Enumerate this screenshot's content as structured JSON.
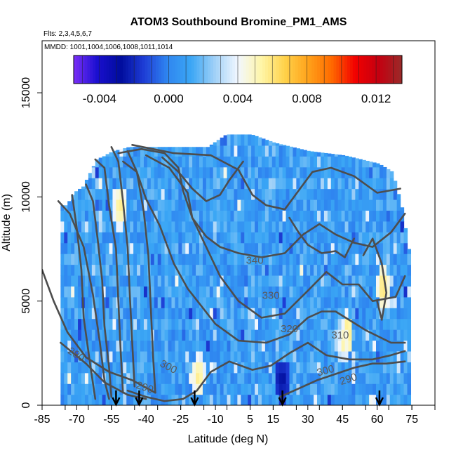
{
  "chart_data": {
    "type": "heatmap",
    "title": "ATOM3 Southbound Bromine_PM1_AMS",
    "flights_label": "Flts: 2,3,4,5,6,7",
    "dates_label": "MMDD: 1001,1004,1006,1008,1011,1014",
    "xlabel": "Latitude (deg N)",
    "ylabel": "Altitude (m)",
    "xlim": [
      -85,
      85
    ],
    "ylim": [
      0,
      17500
    ],
    "x_ticks": [
      -85,
      -70,
      -55,
      -40,
      -25,
      -10,
      5,
      15,
      30,
      45,
      60,
      75
    ],
    "y_ticks": [
      0,
      5000,
      10000,
      15000
    ],
    "colorbar": {
      "range": [
        -0.0055,
        0.0135
      ],
      "ticks": [
        -0.004,
        0.0,
        0.004,
        0.008,
        0.012
      ],
      "tick_labels": [
        "-0.004",
        "0.000",
        "0.004",
        "0.008",
        "0.012"
      ],
      "colors": [
        "#7b2ff7",
        "#1a0fd0",
        "#000c9c",
        "#1e3dd6",
        "#2f86f0",
        "#3aa6f5",
        "#9fd0f7",
        "#f2f7ff",
        "#fff6a8",
        "#ffd24a",
        "#ffa21a",
        "#ff6a00",
        "#f20000",
        "#c40010",
        "#9a2a2a"
      ]
    },
    "contour_labels": [
      "340",
      "330",
      "320",
      "310",
      "300",
      "290",
      "280",
      "300",
      "290"
    ],
    "flight_arrows_latitude": [
      -53,
      -43,
      -19,
      19,
      61
    ],
    "curtain_columns": [
      {
        "lat": -75,
        "top": 9600
      },
      {
        "lat": -72,
        "top": 10200
      },
      {
        "lat": -68,
        "top": 10500
      },
      {
        "lat": -62,
        "top": 11800
      },
      {
        "lat": -55,
        "top": 12200
      },
      {
        "lat": -48,
        "top": 12400
      },
      {
        "lat": -40,
        "top": 12400
      },
      {
        "lat": -30,
        "top": 12400
      },
      {
        "lat": -20,
        "top": 12400
      },
      {
        "lat": -14,
        "top": 12400
      },
      {
        "lat": -6,
        "top": 13000
      },
      {
        "lat": 5,
        "top": 13000
      },
      {
        "lat": 15,
        "top": 12600
      },
      {
        "lat": 30,
        "top": 12200
      },
      {
        "lat": 45,
        "top": 12000
      },
      {
        "lat": 60,
        "top": 11600
      },
      {
        "lat": 66,
        "top": 11200
      },
      {
        "lat": 70,
        "top": 9500
      },
      {
        "lat": 73,
        "top": 7500
      }
    ],
    "hotspots": [
      {
        "lat": -18,
        "alt": 1200,
        "value": 0.006
      },
      {
        "lat": -52,
        "alt": 9300,
        "value": 0.006
      },
      {
        "lat": 46,
        "alt": 3100,
        "value": 0.007
      },
      {
        "lat": 62,
        "alt": 5400,
        "value": 0.0065
      },
      {
        "lat": 18,
        "alt": 1000,
        "value": -0.003
      },
      {
        "lat": 44,
        "alt": 2700,
        "value": 0.0045
      }
    ]
  }
}
